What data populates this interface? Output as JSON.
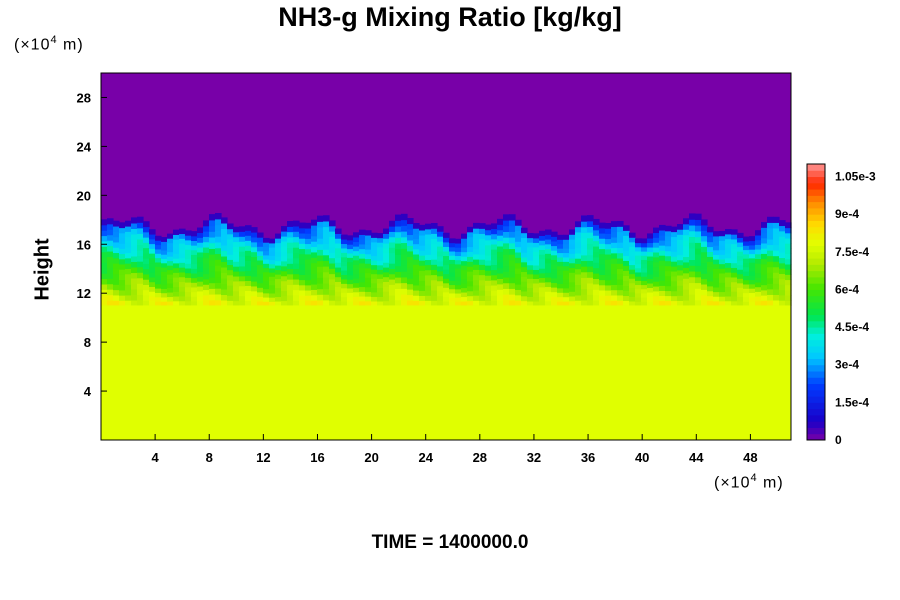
{
  "chart_data": {
    "type": "heatmap",
    "title": "NH3-g Mixing Ratio [kg/kg]",
    "ylabel": "Height",
    "y_unit": {
      "prefix": "(×10",
      "exp": "4",
      "suffix": " m)"
    },
    "x_unit": {
      "prefix": "(×10",
      "exp": "4",
      "suffix": " m)"
    },
    "xlim": [
      0,
      51
    ],
    "ylim": [
      0,
      30
    ],
    "x_ticks": [
      "4",
      "8",
      "12",
      "16",
      "20",
      "24",
      "28",
      "32",
      "36",
      "40",
      "44",
      "48"
    ],
    "y_ticks": [
      "4",
      "8",
      "12",
      "16",
      "20",
      "24",
      "28"
    ],
    "x_tick_values": [
      4,
      8,
      12,
      16,
      20,
      24,
      28,
      32,
      36,
      40,
      44,
      48
    ],
    "y_tick_values": [
      4,
      8,
      12,
      16,
      20,
      24,
      28
    ],
    "colorbar": {
      "range": [
        0,
        0.0011
      ],
      "labels": [
        "0",
        "1.5e-4",
        "3e-4",
        "4.5e-4",
        "6e-4",
        "7.5e-4",
        "9e-4",
        "1.05e-3"
      ],
      "label_values": [
        0,
        0.00015,
        0.0003,
        0.00045,
        0.0006,
        0.00075,
        0.0009,
        0.00105
      ]
    },
    "field_description": {
      "lower_layer": {
        "y_top": 11,
        "value": 0.00078
      },
      "mixed_layer": {
        "y_bottom": 11,
        "y_top": 17.5,
        "value_range": [
          0.00015,
          0.00095
        ]
      },
      "upper_layer": {
        "y_bottom": 17.5,
        "value": 0.0
      }
    },
    "footer": "TIME = 1400000.0"
  }
}
